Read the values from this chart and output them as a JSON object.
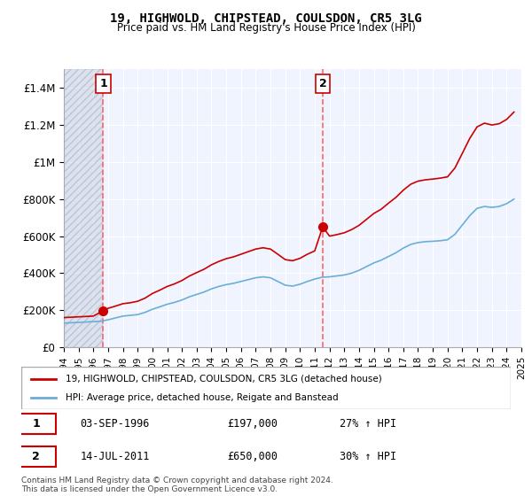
{
  "title": "19, HIGHWOLD, CHIPSTEAD, COULSDON, CR5 3LG",
  "subtitle": "Price paid vs. HM Land Registry's House Price Index (HPI)",
  "legend_line1": "19, HIGHWOLD, CHIPSTEAD, COULSDON, CR5 3LG (detached house)",
  "legend_line2": "HPI: Average price, detached house, Reigate and Banstead",
  "transaction1_label": "1",
  "transaction1_date": "03-SEP-1996",
  "transaction1_price": "£197,000",
  "transaction1_hpi": "27% ↑ HPI",
  "transaction2_label": "2",
  "transaction2_date": "14-JUL-2011",
  "transaction2_price": "£650,000",
  "transaction2_hpi": "30% ↑ HPI",
  "footer": "Contains HM Land Registry data © Crown copyright and database right 2024.\nThis data is licensed under the Open Government Licence v3.0.",
  "hpi_color": "#6baed6",
  "price_color": "#cc0000",
  "transaction_marker_color": "#cc0000",
  "dashed_line_color": "#ff6666",
  "background_hatch_color": "#d0d8e8",
  "ylim": [
    0,
    1500000
  ],
  "xlim_start": 1994,
  "xlim_end": 2025,
  "yticks": [
    0,
    200000,
    400000,
    600000,
    800000,
    1000000,
    1200000,
    1400000
  ],
  "ytick_labels": [
    "£0",
    "£200K",
    "£400K",
    "£600K",
    "£800K",
    "£1M",
    "£1.2M",
    "£1.4M"
  ],
  "xticks": [
    1994,
    1995,
    1996,
    1997,
    1998,
    1999,
    2000,
    2001,
    2002,
    2003,
    2004,
    2005,
    2006,
    2007,
    2008,
    2009,
    2010,
    2011,
    2012,
    2013,
    2014,
    2015,
    2016,
    2017,
    2018,
    2019,
    2020,
    2021,
    2022,
    2023,
    2024,
    2025
  ],
  "transaction1_x": 1996.67,
  "transaction2_x": 2011.54,
  "transaction1_y": 197000,
  "transaction2_y": 650000,
  "hpi_x": [
    1994,
    1994.5,
    1995,
    1995.5,
    1996,
    1996.5,
    1997,
    1997.5,
    1998,
    1998.5,
    1999,
    1999.5,
    2000,
    2000.5,
    2001,
    2001.5,
    2002,
    2002.5,
    2003,
    2003.5,
    2004,
    2004.5,
    2005,
    2005.5,
    2006,
    2006.5,
    2007,
    2007.5,
    2008,
    2008.5,
    2009,
    2009.5,
    2010,
    2010.5,
    2011,
    2011.5,
    2012,
    2012.5,
    2013,
    2013.5,
    2014,
    2014.5,
    2015,
    2015.5,
    2016,
    2016.5,
    2017,
    2017.5,
    2018,
    2018.5,
    2019,
    2019.5,
    2020,
    2020.5,
    2021,
    2021.5,
    2022,
    2022.5,
    2023,
    2023.5,
    2024,
    2024.5
  ],
  "hpi_y": [
    130000,
    132000,
    134000,
    136000,
    138000,
    140000,
    148000,
    158000,
    168000,
    172000,
    176000,
    188000,
    205000,
    218000,
    232000,
    242000,
    255000,
    272000,
    285000,
    298000,
    315000,
    328000,
    338000,
    345000,
    355000,
    365000,
    375000,
    380000,
    375000,
    355000,
    335000,
    330000,
    340000,
    355000,
    368000,
    378000,
    380000,
    385000,
    390000,
    400000,
    415000,
    435000,
    455000,
    470000,
    490000,
    510000,
    535000,
    555000,
    565000,
    570000,
    572000,
    575000,
    580000,
    610000,
    660000,
    710000,
    750000,
    760000,
    755000,
    760000,
    775000,
    800000
  ],
  "price_x": [
    1994,
    1994.5,
    1995,
    1995.5,
    1996,
    1996.67,
    1997,
    1997.5,
    1998,
    1998.5,
    1999,
    1999.5,
    2000,
    2000.5,
    2001,
    2001.5,
    2002,
    2002.5,
    2003,
    2003.5,
    2004,
    2004.5,
    2005,
    2005.5,
    2006,
    2006.5,
    2007,
    2007.5,
    2008,
    2008.5,
    2009,
    2009.5,
    2010,
    2010.5,
    2011,
    2011.54,
    2012,
    2012.5,
    2013,
    2013.5,
    2014,
    2014.5,
    2015,
    2015.5,
    2016,
    2016.5,
    2017,
    2017.5,
    2018,
    2018.5,
    2019,
    2019.5,
    2020,
    2020.5,
    2021,
    2021.5,
    2022,
    2022.5,
    2023,
    2023.5,
    2024,
    2024.5
  ],
  "price_y": [
    160000,
    162000,
    164000,
    166000,
    168000,
    197000,
    210000,
    222000,
    235000,
    240000,
    248000,
    265000,
    290000,
    308000,
    328000,
    342000,
    360000,
    384000,
    403000,
    421000,
    445000,
    463000,
    478000,
    488000,
    502000,
    516000,
    530000,
    537000,
    530000,
    502000,
    473000,
    467000,
    480000,
    502000,
    520000,
    650000,
    600000,
    608000,
    618000,
    635000,
    658000,
    690000,
    722000,
    745000,
    778000,
    809000,
    848000,
    880000,
    897000,
    904000,
    908000,
    913000,
    920000,
    968000,
    1047000,
    1127000,
    1190000,
    1210000,
    1200000,
    1207000,
    1230000,
    1270000
  ]
}
